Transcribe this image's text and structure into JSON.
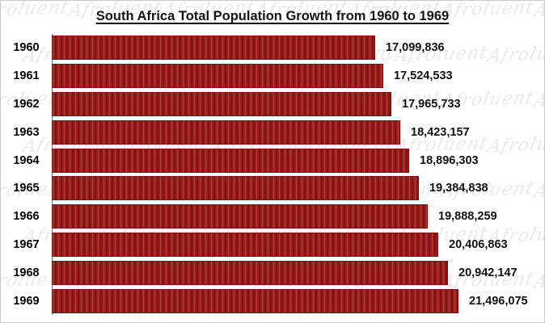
{
  "title": "South Africa Total Population Growth from 1960 to 1969",
  "watermark": {
    "text": "Afroluent"
  },
  "colors": {
    "bar": "#9E1C1A",
    "bar_border": "#7D1210",
    "axis_line": "#6E6E6E",
    "frame_border": "#C9C9C9",
    "background": "#FFFFFF",
    "text": "#111111"
  },
  "chart_data": {
    "type": "bar",
    "orientation": "horizontal",
    "title": "South Africa Total Population Growth from 1960 to 1969",
    "categories": [
      "1960",
      "1961",
      "1962",
      "1963",
      "1964",
      "1965",
      "1966",
      "1967",
      "1968",
      "1969"
    ],
    "values": [
      17099836,
      17524533,
      17965733,
      18423157,
      18896303,
      19384838,
      19888259,
      20406863,
      20942147,
      21496075
    ],
    "value_labels": [
      "17,099,836",
      "17,524,533",
      "17,965,733",
      "18,423,157",
      "18,896,303",
      "19,384,838",
      "19,888,259",
      "20,406,863",
      "20,942,147",
      "21,496,075"
    ],
    "xlabel": "",
    "ylabel": "",
    "xlim": [
      0,
      21496075
    ],
    "grid": false,
    "legend": false,
    "data_labels": "outside-end"
  }
}
